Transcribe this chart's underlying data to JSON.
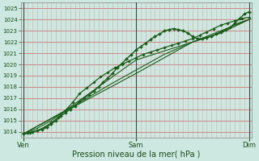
{
  "title": "",
  "xlabel": "Pression niveau de la mer( hPa )",
  "bg_color": "#cce8e0",
  "grid_color_major": "#cc8888",
  "grid_color_minor": "#ddaaaa",
  "line_color": "#1a5c1a",
  "ylim": [
    1013.5,
    1025.5
  ],
  "yticks": [
    1014,
    1015,
    1016,
    1017,
    1018,
    1019,
    1020,
    1021,
    1022,
    1023,
    1024,
    1025
  ],
  "day_labels": [
    "Ven",
    "Sam",
    "Dim"
  ],
  "day_positions": [
    0,
    48,
    96
  ],
  "xlim": [
    -1,
    97
  ],
  "series": [
    {
      "x": [
        0,
        2,
        4,
        6,
        8,
        10,
        12,
        14,
        16,
        18,
        20,
        22,
        24,
        26,
        28,
        30,
        32,
        34,
        36,
        38,
        40,
        42,
        44,
        46,
        48,
        50,
        52,
        54,
        56,
        58,
        60,
        62,
        64,
        66,
        68,
        70,
        72,
        74,
        76,
        78,
        80,
        82,
        84,
        86,
        88,
        90,
        92,
        94,
        96
      ],
      "y": [
        1013.8,
        1013.9,
        1014.0,
        1014.1,
        1014.2,
        1014.4,
        1014.7,
        1015.0,
        1015.4,
        1015.7,
        1016.0,
        1016.3,
        1016.7,
        1017.0,
        1017.3,
        1017.6,
        1018.0,
        1018.4,
        1018.8,
        1019.2,
        1019.7,
        1020.1,
        1020.5,
        1020.9,
        1021.3,
        1021.6,
        1021.9,
        1022.2,
        1022.5,
        1022.7,
        1023.0,
        1023.1,
        1023.2,
        1023.1,
        1023.0,
        1022.8,
        1022.5,
        1022.3,
        1022.3,
        1022.4,
        1022.5,
        1022.7,
        1022.9,
        1023.1,
        1023.3,
        1023.7,
        1024.1,
        1024.5,
        1024.7
      ],
      "marker": "D",
      "ms": 2.0,
      "lw": 1.0
    },
    {
      "x": [
        0,
        6,
        12,
        18,
        24,
        30,
        36,
        42,
        48,
        54,
        60,
        66,
        72,
        78,
        84,
        90,
        96
      ],
      "y": [
        1013.8,
        1014.3,
        1015.0,
        1015.9,
        1016.8,
        1017.7,
        1018.6,
        1019.5,
        1020.4,
        1020.8,
        1021.2,
        1021.6,
        1022.0,
        1022.4,
        1022.8,
        1023.6,
        1024.0
      ],
      "marker": null,
      "ms": 0,
      "lw": 0.8
    },
    {
      "x": [
        0,
        12,
        24,
        36,
        48,
        60,
        72,
        84,
        96
      ],
      "y": [
        1013.8,
        1015.2,
        1016.6,
        1018.1,
        1019.5,
        1020.9,
        1022.0,
        1022.8,
        1024.0
      ],
      "marker": null,
      "ms": 0,
      "lw": 0.8
    },
    {
      "x": [
        0,
        24,
        48,
        72,
        96
      ],
      "y": [
        1013.8,
        1016.5,
        1019.2,
        1022.0,
        1024.0
      ],
      "marker": null,
      "ms": 0,
      "lw": 0.8
    },
    {
      "x": [
        0,
        3,
        6,
        9,
        12,
        15,
        18,
        21,
        24,
        27,
        30,
        33,
        36,
        39,
        42,
        45,
        48,
        51,
        54,
        57,
        60,
        63,
        66,
        69,
        72,
        75,
        78,
        81,
        84,
        87,
        90,
        93,
        96
      ],
      "y": [
        1013.8,
        1013.9,
        1014.1,
        1014.4,
        1014.8,
        1015.3,
        1015.9,
        1016.6,
        1017.4,
        1017.9,
        1018.4,
        1018.9,
        1019.3,
        1019.7,
        1020.0,
        1020.3,
        1020.6,
        1020.9,
        1021.1,
        1021.3,
        1021.5,
        1021.7,
        1021.9,
        1022.1,
        1022.3,
        1022.6,
        1022.9,
        1023.2,
        1023.5,
        1023.7,
        1023.9,
        1024.1,
        1024.2
      ],
      "marker": "D",
      "ms": 1.8,
      "lw": 0.9
    }
  ]
}
